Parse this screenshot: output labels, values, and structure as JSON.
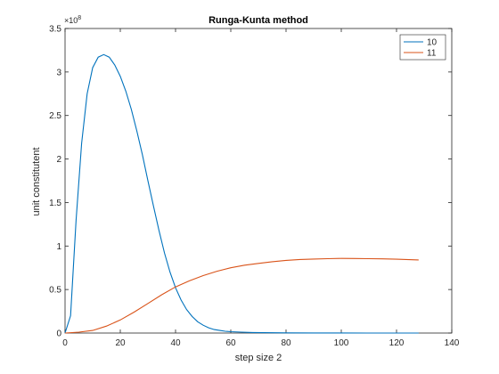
{
  "chart_data": {
    "type": "line",
    "title": "Runga-Kunta method",
    "xlabel": "step size 2",
    "ylabel": "unit constitutent",
    "xlim": [
      0,
      140
    ],
    "ylim": [
      0,
      3.5
    ],
    "y_scale_label": "×10",
    "y_scale_exponent": "8",
    "xticks": [
      "0",
      "20",
      "40",
      "60",
      "80",
      "100",
      "120",
      "140"
    ],
    "yticks": [
      "0",
      "0.5",
      "1",
      "1.5",
      "2",
      "2.5",
      "3",
      "3.5"
    ],
    "grid": false,
    "legend_position": "top-right",
    "series": [
      {
        "name": "10",
        "color": "#0072BD",
        "x": [
          0,
          2,
          4,
          6,
          8,
          10,
          12,
          14,
          16,
          18,
          20,
          22,
          24,
          26,
          28,
          30,
          32,
          34,
          36,
          38,
          40,
          42,
          44,
          46,
          48,
          50,
          52,
          54,
          56,
          58,
          60,
          64,
          68,
          72,
          80,
          90,
          100,
          110,
          120,
          128
        ],
        "y": [
          0,
          0.2,
          1.3,
          2.18,
          2.75,
          3.05,
          3.17,
          3.2,
          3.17,
          3.08,
          2.95,
          2.78,
          2.57,
          2.32,
          2.05,
          1.75,
          1.46,
          1.18,
          0.92,
          0.7,
          0.52,
          0.38,
          0.27,
          0.19,
          0.13,
          0.09,
          0.06,
          0.04,
          0.03,
          0.02,
          0.015,
          0.01,
          0.006,
          0.004,
          0.002,
          0.001,
          0.001,
          0,
          0,
          0
        ]
      },
      {
        "name": "11",
        "color": "#D95319",
        "x": [
          0,
          5,
          10,
          15,
          20,
          25,
          30,
          35,
          40,
          45,
          50,
          55,
          60,
          65,
          70,
          75,
          80,
          85,
          90,
          95,
          100,
          105,
          110,
          115,
          120,
          128
        ],
        "y": [
          0,
          0.01,
          0.03,
          0.08,
          0.15,
          0.24,
          0.34,
          0.44,
          0.53,
          0.6,
          0.66,
          0.71,
          0.75,
          0.78,
          0.8,
          0.82,
          0.835,
          0.845,
          0.85,
          0.855,
          0.858,
          0.857,
          0.855,
          0.852,
          0.848,
          0.84
        ]
      }
    ]
  }
}
